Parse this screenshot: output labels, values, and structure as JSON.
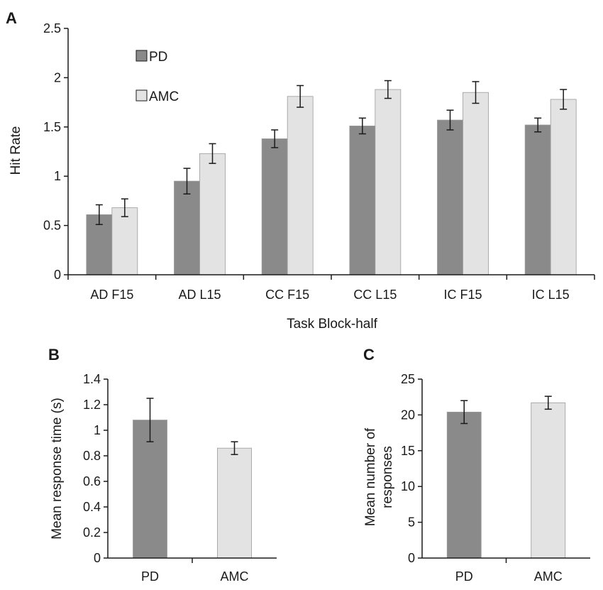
{
  "colors": {
    "pd": "#8a8a8a",
    "amc": "#e3e3e3",
    "stroke": "#1a1a1a"
  },
  "chart_data": [
    {
      "panel": "A",
      "type": "bar",
      "title": "",
      "xlabel": "Task Block-half",
      "ylabel": "Hit Rate",
      "ylim": [
        0,
        2.5
      ],
      "yticks": [
        "0",
        "0.5",
        "1",
        "1.5",
        "2",
        "2.5"
      ],
      "ytick_values": [
        0,
        0.5,
        1,
        1.5,
        2,
        2.5
      ],
      "legend": [
        "PD",
        "AMC"
      ],
      "legend_position": "top-left",
      "categories": [
        "AD F15",
        "AD L15",
        "CC F15",
        "CC L15",
        "IC F15",
        "IC L15"
      ],
      "series": [
        {
          "name": "PD",
          "values": [
            0.61,
            0.95,
            1.38,
            1.51,
            1.57,
            1.52
          ],
          "errors": [
            0.1,
            0.13,
            0.09,
            0.08,
            0.1,
            0.07
          ]
        },
        {
          "name": "AMC",
          "values": [
            0.68,
            1.23,
            1.81,
            1.88,
            1.85,
            1.78
          ],
          "errors": [
            0.09,
            0.1,
            0.11,
            0.09,
            0.11,
            0.1
          ]
        }
      ]
    },
    {
      "panel": "B",
      "type": "bar",
      "title": "",
      "xlabel": "",
      "ylabel": "Mean response time (s)",
      "ylim": [
        0,
        1.4
      ],
      "yticks": [
        "0",
        "0.2",
        "0.4",
        "0.6",
        "0.8",
        "1",
        "1.2",
        "1.4"
      ],
      "ytick_values": [
        0,
        0.2,
        0.4,
        0.6,
        0.8,
        1,
        1.2,
        1.4
      ],
      "categories": [
        "PD",
        "AMC"
      ],
      "values": [
        1.08,
        0.86
      ],
      "errors": [
        0.17,
        0.05
      ]
    },
    {
      "panel": "C",
      "type": "bar",
      "title": "",
      "xlabel": "",
      "ylabel": [
        "Mean number of",
        "responses"
      ],
      "ylim": [
        0,
        25
      ],
      "yticks": [
        "0",
        "5",
        "10",
        "15",
        "20",
        "25"
      ],
      "ytick_values": [
        0,
        5,
        10,
        15,
        20,
        25
      ],
      "categories": [
        "PD",
        "AMC"
      ],
      "values": [
        20.4,
        21.7
      ],
      "errors": [
        1.6,
        0.9
      ]
    }
  ]
}
